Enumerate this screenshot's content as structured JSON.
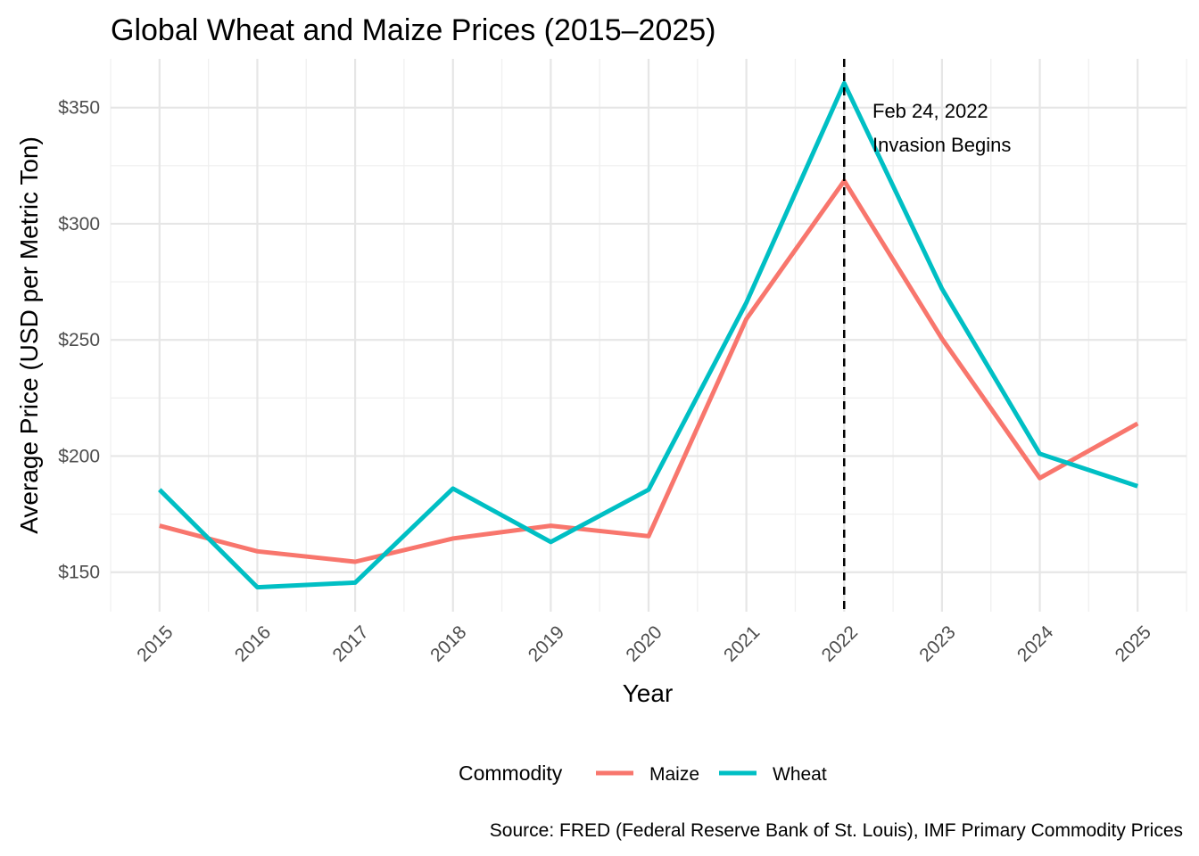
{
  "chart_data": {
    "type": "line",
    "title": "Global Wheat and Maize Prices (2015–2025)",
    "xlabel": "Year",
    "ylabel": "Average Price (USD per Metric Ton)",
    "x": [
      2015,
      2016,
      2017,
      2018,
      2019,
      2020,
      2021,
      2022,
      2023,
      2024,
      2025
    ],
    "x_tick_labels": [
      "2015",
      "2016",
      "2017",
      "2018",
      "2019",
      "2020",
      "2021",
      "2022",
      "2023",
      "2024",
      "2025"
    ],
    "y_ticks": [
      150,
      200,
      250,
      300,
      350
    ],
    "y_tick_labels": [
      "$150",
      "$200",
      "$250",
      "$300",
      "$350"
    ],
    "xlim": [
      2014.5,
      2025.5
    ],
    "ylim": [
      133,
      371
    ],
    "grid": true,
    "series": [
      {
        "name": "Maize",
        "color": "#F8766D",
        "values": [
          170,
          159,
          154.5,
          164.5,
          170,
          165.5,
          259,
          318.5,
          250.5,
          190.5,
          214
        ]
      },
      {
        "name": "Wheat",
        "color": "#00BFC4",
        "values": [
          185.5,
          143.5,
          145.5,
          186,
          163,
          185.5,
          266,
          360.5,
          272,
          201,
          187
        ]
      }
    ],
    "vline": {
      "x": 2022,
      "style": "dashed",
      "color": "#000000"
    },
    "annotation": {
      "lines": [
        "Feb 24, 2022",
        "Invasion Begins"
      ]
    },
    "legend": {
      "title": "Commodity",
      "position": "bottom"
    },
    "caption": "Source: FRED (Federal Reserve Bank of St. Louis), IMF Primary Commodity Prices"
  }
}
